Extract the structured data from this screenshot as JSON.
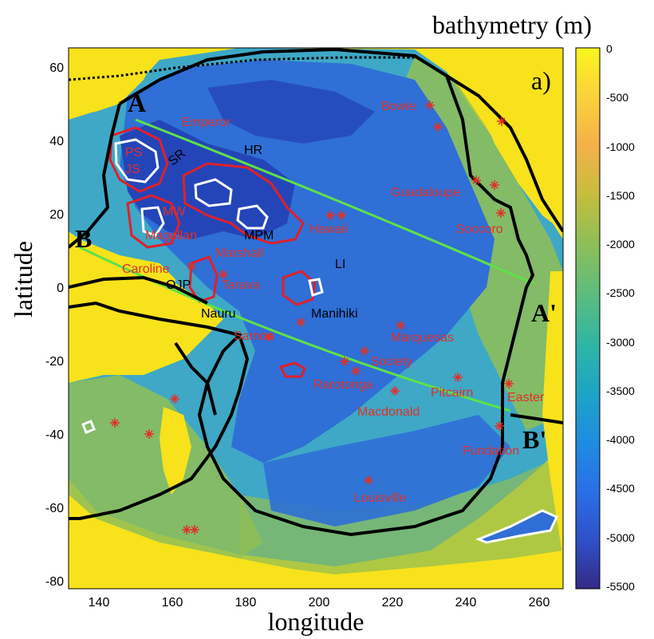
{
  "figure": {
    "panel_label": "a)",
    "colorbar_title": "bathymetry (m)",
    "colorbar_ticks": [
      "0",
      "-500",
      "-1000",
      "-1500",
      "-2000",
      "-2500",
      "-3000",
      "-3500",
      "-4000",
      "-4500",
      "-5000",
      "-5500"
    ],
    "xlabel": "longitude",
    "ylabel": "latitude",
    "xticks": [
      "140",
      "160",
      "180",
      "200",
      "220",
      "240",
      "260"
    ],
    "yticks": [
      "60",
      "40",
      "20",
      "0",
      "-20",
      "-40",
      "-60",
      "-80"
    ],
    "xlim": [
      130,
      265
    ],
    "ylim": [
      -80,
      65
    ],
    "colors": {
      "land": "#f7e21b",
      "shallow": "#8fbe56",
      "mid": "#3ea8c6",
      "deep": "#2f6fd6",
      "deepest": "#2445b8",
      "label_red": "#e0302a",
      "track_green": "#5fe04a",
      "contour_red": "#e0202a",
      "contour_white": "#ffffff",
      "boundary": "#000000"
    }
  },
  "profiles": [
    {
      "start": "A",
      "end": "A'"
    },
    {
      "start": "B",
      "end": "B'"
    }
  ],
  "red_labels": [
    "Emperor",
    "Bowie",
    "PS",
    "JS",
    "Guadaloupe",
    "MW",
    "Magellan",
    "Hawaii",
    "Soccoro",
    "Marshall",
    "Caroline",
    "Tarava",
    "Samoa",
    "Marquesas",
    "Society",
    "Rarotonga",
    "Pitcairn",
    "Easter",
    "Macdonald",
    "Fundation",
    "Louisville"
  ],
  "black_labels": [
    "SR",
    "HR",
    "MPM",
    "LI",
    "OJP",
    "Nauru",
    "Manihiki"
  ]
}
